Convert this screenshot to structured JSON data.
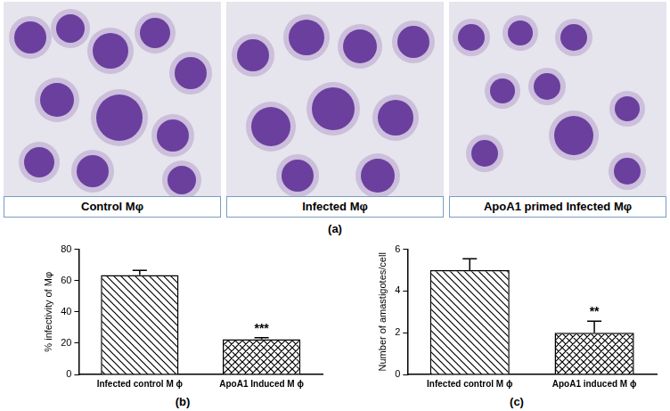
{
  "figure": {
    "label": "(a)",
    "captions": [
      "Control Mφ",
      "Infected Mφ",
      "ApoA1 primed Infected Mφ"
    ]
  },
  "chart_data": [
    {
      "type": "bar",
      "label": "(b)",
      "y_label": "% infectivity of Mφ",
      "categories": [
        "Infected control M ϕ",
        "ApoA1 Induced M ϕ"
      ],
      "values": [
        63.5,
        22.5
      ],
      "errors": [
        3,
        1
      ],
      "color": "#000000",
      "ylim": [
        0,
        80
      ],
      "yticks": [
        0,
        20,
        40,
        60,
        80
      ],
      "grid": false,
      "annotations": [
        {
          "category": "ApoA1 Induced M ϕ",
          "text": "***"
        }
      ]
    },
    {
      "type": "bar",
      "label": "(c)",
      "y_label": "Number of amastigotes/cell",
      "categories": [
        "Infected control M ϕ",
        "ApoA1 induced M ϕ"
      ],
      "values": [
        5,
        2
      ],
      "errors": [
        0.55,
        0.55
      ],
      "color": "#000000",
      "ylim": [
        0,
        6
      ],
      "yticks": [
        0,
        2,
        4,
        6
      ],
      "grid": false,
      "annotations": [
        {
          "category": "ApoA1 induced M ϕ",
          "text": "**"
        }
      ]
    }
  ]
}
